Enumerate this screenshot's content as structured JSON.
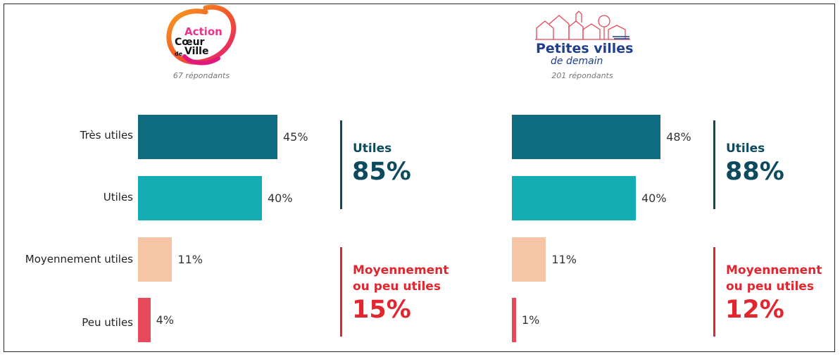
{
  "colors": {
    "tres_utiles": "#0e6b80",
    "utiles": "#14adb3",
    "moyennement": "#f6c5a6",
    "peu": "#e5495a",
    "summary_positive": "#0d4a5e",
    "summary_negative": "#e1262f"
  },
  "logos": {
    "acv": {
      "line1": "Action",
      "line2": "Cœur",
      "line3_small": "de",
      "line3": "Ville",
      "icon": "ring-swirl-icon"
    },
    "pvd": {
      "line1": "Petites villes",
      "line2": "de demain",
      "icon": "town-outline-icon"
    }
  },
  "chart_data": [
    {
      "type": "bar",
      "orientation": "horizontal",
      "group": "Action Cœur de Ville",
      "respondents": "67 répondants",
      "categories": [
        "Très utiles",
        "Utiles",
        "Moyennement utiles",
        "Peu utiles"
      ],
      "values": [
        45,
        40,
        11,
        4
      ],
      "value_labels": [
        "45%",
        "40%",
        "11%",
        "4%"
      ],
      "xlim": [
        0,
        100
      ],
      "summary": [
        {
          "label": "Utiles",
          "value": "85%"
        },
        {
          "label_line1": "Moyennement",
          "label_line2": "ou peu utiles",
          "value": "15%"
        }
      ]
    },
    {
      "type": "bar",
      "orientation": "horizontal",
      "group": "Petites villes de demain",
      "respondents": "201 répondants",
      "categories": [
        "Très utiles",
        "Utiles",
        "Moyennement utiles",
        "Peu utiles"
      ],
      "values": [
        48,
        40,
        11,
        1
      ],
      "value_labels": [
        "48%",
        "40%",
        "11%",
        "1%"
      ],
      "xlim": [
        0,
        100
      ],
      "summary": [
        {
          "label": "Utiles",
          "value": "88%"
        },
        {
          "label_line1": "Moyennement",
          "label_line2": "ou peu utiles",
          "value": "12%"
        }
      ]
    }
  ]
}
